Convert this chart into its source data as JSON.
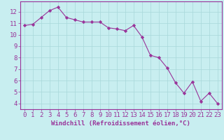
{
  "x": [
    0,
    1,
    2,
    3,
    4,
    5,
    6,
    7,
    8,
    9,
    10,
    11,
    12,
    13,
    14,
    15,
    16,
    17,
    18,
    19,
    20,
    21,
    22,
    23
  ],
  "y": [
    10.8,
    10.9,
    11.5,
    12.1,
    12.4,
    11.5,
    11.3,
    11.1,
    11.1,
    11.1,
    10.6,
    10.5,
    10.35,
    10.8,
    9.8,
    8.2,
    8.0,
    7.1,
    5.8,
    4.9,
    5.9,
    4.2,
    4.9,
    4.0
  ],
  "line_color": "#993399",
  "marker": "D",
  "marker_size": 2.2,
  "bg_color": "#c8eef0",
  "grid_color": "#a8d8da",
  "xlabel": "Windchill (Refroidissement éolien,°C)",
  "xlim": [
    -0.5,
    23.5
  ],
  "ylim": [
    3.5,
    12.9
  ],
  "yticks": [
    4,
    5,
    6,
    7,
    8,
    9,
    10,
    11,
    12
  ],
  "xticks": [
    0,
    1,
    2,
    3,
    4,
    5,
    6,
    7,
    8,
    9,
    10,
    11,
    12,
    13,
    14,
    15,
    16,
    17,
    18,
    19,
    20,
    21,
    22,
    23
  ],
  "tick_color": "#993399",
  "label_color": "#993399",
  "spine_color": "#993399",
  "tick_fontsize": 6.5,
  "xlabel_fontsize": 6.5
}
